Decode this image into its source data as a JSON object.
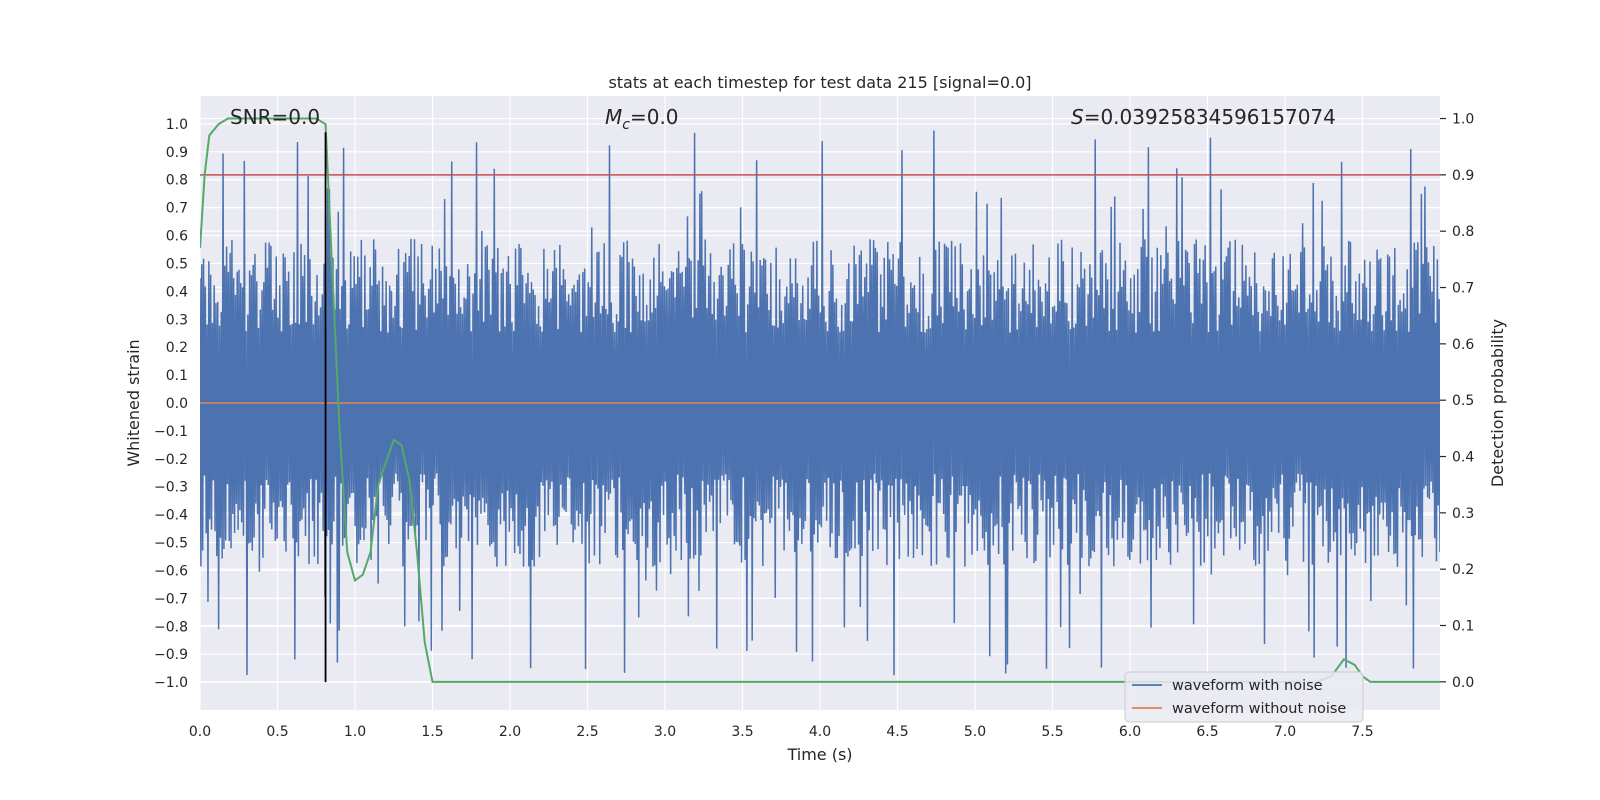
{
  "chart_data": {
    "type": "line",
    "title": "stats at each timestep for test data 215 [signal=0.0]",
    "xlabel": "Time (s)",
    "ylabel": "Whitened strain",
    "y2label": "Detection probability",
    "xlim": [
      0.0,
      8.0
    ],
    "ylim": [
      -1.1,
      1.1
    ],
    "y2lim": [
      -0.05,
      1.04
    ],
    "xticks": [
      0.0,
      0.5,
      1.0,
      1.5,
      2.0,
      2.5,
      3.0,
      3.5,
      4.0,
      4.5,
      5.0,
      5.5,
      6.0,
      6.5,
      7.0,
      7.5
    ],
    "xtick_labels": [
      "0.0",
      "0.5",
      "1.0",
      "1.5",
      "2.0",
      "2.5",
      "3.0",
      "3.5",
      "4.0",
      "4.5",
      "5.0",
      "5.5",
      "6.0",
      "6.5",
      "7.0",
      "7.5"
    ],
    "yticks": [
      1.0,
      0.9,
      0.8,
      0.7,
      0.6,
      0.5,
      0.4,
      0.3,
      0.2,
      0.1,
      0.0,
      -0.1,
      -0.2,
      -0.3,
      -0.4,
      -0.5,
      -0.6,
      -0.7,
      -0.8,
      -0.9,
      -1.0
    ],
    "ytick_labels": [
      "1.0",
      "0.9",
      "0.8",
      "0.7",
      "0.6",
      "0.5",
      "0.4",
      "0.3",
      "0.2",
      "0.1",
      "0.0",
      "−0.1",
      "−0.2",
      "−0.3",
      "−0.4",
      "−0.5",
      "−0.6",
      "−0.7",
      "−0.8",
      "−0.9",
      "−1.0"
    ],
    "y2ticks": [
      1.0,
      0.9,
      0.8,
      0.7,
      0.6,
      0.5,
      0.4,
      0.3,
      0.2,
      0.1,
      0.0
    ],
    "y2tick_labels": [
      "1.0",
      "0.9",
      "0.8",
      "0.7",
      "0.6",
      "0.5",
      "0.4",
      "0.3",
      "0.2",
      "0.1",
      "0.0"
    ],
    "annotations": {
      "snr": "SNR=0.0",
      "mc_symbol": "M",
      "mc_sub": "c",
      "mc_value": "=0.0",
      "s_symbol": "S",
      "s_value": "=0.03925834596157074"
    },
    "threshold": 0.9,
    "marker_time": 0.81,
    "series": [
      {
        "name": "waveform with noise",
        "color": "#4c72b0",
        "axis": "left",
        "kind": "noise",
        "time_range": [
          0.0,
          8.0
        ],
        "samples": 1400,
        "typical_amplitude": 0.42,
        "peak_max": 0.98,
        "peak_min": -1.0
      },
      {
        "name": "waveform without noise",
        "color": "#dd8452",
        "axis": "left",
        "x": [
          0.0,
          8.0
        ],
        "y": [
          0.0,
          0.0
        ]
      },
      {
        "name": "detection probability",
        "color": "#55a868",
        "axis": "right",
        "x": [
          0.0,
          0.03,
          0.06,
          0.12,
          0.18,
          0.25,
          0.5,
          0.75,
          0.81,
          0.85,
          0.9,
          0.95,
          1.0,
          1.05,
          1.1,
          1.15,
          1.2,
          1.25,
          1.3,
          1.35,
          1.4,
          1.45,
          1.5,
          1.56,
          1.62,
          7.2,
          7.3,
          7.38,
          7.45,
          7.5,
          7.55,
          7.6,
          8.0
        ],
        "y": [
          0.77,
          0.9,
          0.97,
          0.99,
          1.0,
          1.0,
          1.0,
          1.0,
          0.99,
          0.75,
          0.45,
          0.23,
          0.18,
          0.19,
          0.23,
          0.35,
          0.39,
          0.43,
          0.42,
          0.36,
          0.23,
          0.07,
          0.0,
          0.0,
          0.0,
          0.0,
          0.01,
          0.04,
          0.03,
          0.01,
          0.0,
          0.0,
          0.0
        ]
      },
      {
        "name": "detection threshold",
        "color": "#c44e52",
        "axis": "right",
        "x": [
          0.0,
          8.0
        ],
        "y": [
          0.9,
          0.9
        ]
      }
    ],
    "legend": {
      "placement": "lower-right",
      "entries": [
        {
          "label": "waveform with noise",
          "color": "#4c72b0"
        },
        {
          "label": "waveform without noise",
          "color": "#dd8452"
        }
      ]
    },
    "grid": true,
    "background": "#eaeaf2"
  }
}
